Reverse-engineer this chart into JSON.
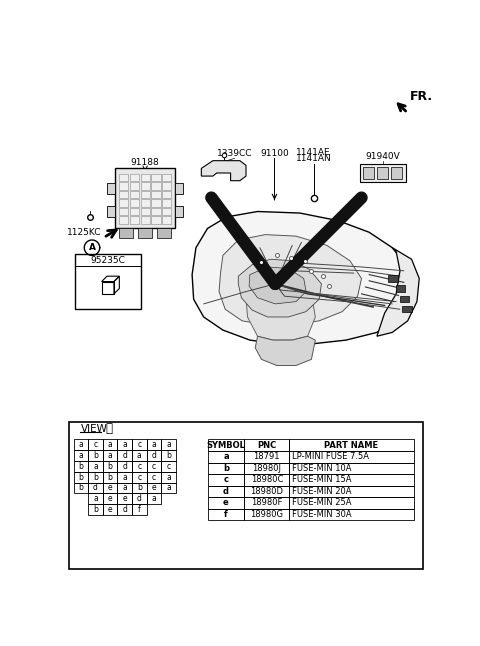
{
  "bg_color": "#ffffff",
  "fig_width": 4.8,
  "fig_height": 6.46,
  "dpi": 100,
  "fr_label": "FR.",
  "part_labels": [
    "1339CC",
    "91100",
    "1141AE\n1141AN",
    "91940V",
    "91188",
    "1125KC",
    "95235C"
  ],
  "fuse_grid": [
    [
      "a",
      "c",
      "a",
      "a",
      "c",
      "a",
      "a"
    ],
    [
      "a",
      "b",
      "a",
      "d",
      "a",
      "d",
      "b"
    ],
    [
      "b",
      "a",
      "b",
      "d",
      "c",
      "c",
      "c"
    ],
    [
      "b",
      "b",
      "b",
      "a",
      "c",
      "c",
      "a"
    ],
    [
      "b",
      "d",
      "e",
      "a",
      "b",
      "e",
      "a"
    ],
    [
      "",
      "a",
      "e",
      "e",
      "d",
      "a",
      ""
    ],
    [
      "",
      "b",
      "e",
      "d",
      "f",
      "",
      ""
    ]
  ],
  "symbol_col": [
    "SYMBOL",
    "a",
    "b",
    "c",
    "d",
    "e",
    "f"
  ],
  "pnc_col": [
    "PNC",
    "18791",
    "18980J",
    "18980C",
    "18980D",
    "18980F",
    "18980G"
  ],
  "partname_col": [
    "PART NAME",
    "LP-MINI FUSE 7.5A",
    "FUSE-MIN 10A",
    "FUSE-MIN 15A",
    "FUSE-MIN 20A",
    "FUSE-MIN 25A",
    "FUSE-MIN 30A"
  ]
}
